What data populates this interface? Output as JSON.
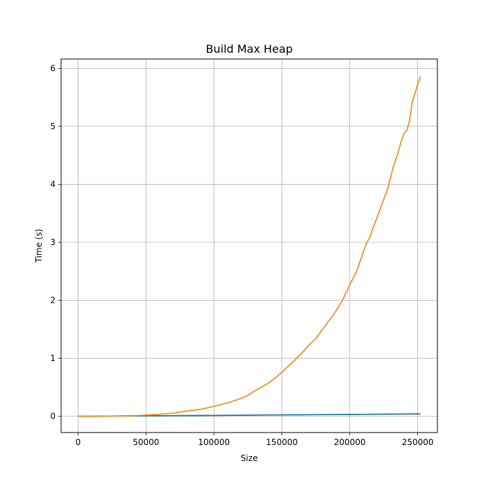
{
  "chart_data": {
    "type": "line",
    "title": "Build Max Heap",
    "xlabel": "Size",
    "ylabel": "Time (s)",
    "xlim": [
      -12500,
      264500
    ],
    "ylim": [
      -0.28,
      6.16
    ],
    "grid": true,
    "x_ticks": [
      0,
      50000,
      100000,
      150000,
      200000,
      250000
    ],
    "y_ticks": [
      0,
      1,
      2,
      3,
      4,
      5,
      6
    ],
    "series": [
      {
        "color": "#2ca02c",
        "x": [
          0,
          50000,
          100000,
          150000,
          200000,
          252000
        ],
        "values": [
          0.0,
          0.008,
          0.015,
          0.023,
          0.031,
          0.04
        ]
      },
      {
        "color": "#1f77b4",
        "x": [
          0,
          50000,
          100000,
          150000,
          200000,
          252000
        ],
        "values": [
          0.0,
          0.009,
          0.016,
          0.025,
          0.033,
          0.043
        ]
      },
      {
        "color": "#ff7f0e",
        "x": [
          0,
          10000,
          20000,
          30000,
          40000,
          50000,
          60000,
          70000,
          80000,
          90000,
          100000,
          110000,
          120000,
          125000,
          130000,
          140000,
          145000,
          150000,
          160000,
          165000,
          170000,
          175000,
          180000,
          185000,
          188000,
          192000,
          195000,
          200000,
          205000,
          208000,
          212000,
          215000,
          218000,
          222000,
          225000,
          228000,
          232000,
          235000,
          238000,
          240000,
          242000,
          244000,
          246000,
          248000,
          250000,
          252000
        ],
        "values": [
          0.0,
          0.0,
          0.002,
          0.005,
          0.01,
          0.02,
          0.035,
          0.055,
          0.09,
          0.12,
          0.17,
          0.23,
          0.31,
          0.36,
          0.44,
          0.57,
          0.66,
          0.76,
          0.98,
          1.1,
          1.23,
          1.34,
          1.5,
          1.66,
          1.75,
          1.9,
          2.02,
          2.27,
          2.5,
          2.7,
          2.97,
          3.1,
          3.3,
          3.55,
          3.74,
          3.93,
          4.3,
          4.5,
          4.75,
          4.88,
          4.93,
          5.1,
          5.42,
          5.57,
          5.72,
          5.86
        ]
      }
    ]
  }
}
